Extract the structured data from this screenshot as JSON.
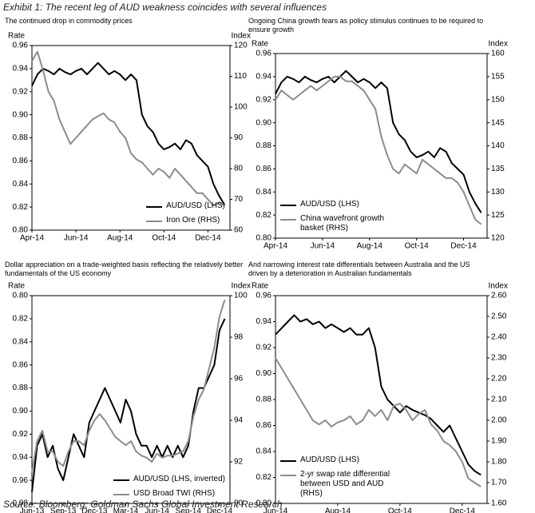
{
  "title": "Exhibit 1: The recent leg of AUD weakness coincides with several influences",
  "source": "Source: Bloomberg; Goldman Sachs Global Investment Research",
  "chart_data": [
    {
      "type": "line",
      "title": "The continued drop in commodity prices",
      "y_label": "Rate",
      "y2_label": "Index",
      "legend": "lower right",
      "x": [
        0,
        0.25,
        0.5,
        0.75,
        1,
        1.25,
        1.5,
        1.75,
        2,
        2.25,
        2.5,
        2.75,
        3,
        3.25,
        3.5,
        3.75,
        4,
        4.25,
        4.5,
        4.75,
        5,
        5.25,
        5.5,
        5.75,
        6,
        6.25,
        6.5,
        6.75,
        7,
        7.25,
        7.5,
        7.75,
        8,
        8.25,
        8.5,
        8.75
      ],
      "xlim": [
        0,
        9
      ],
      "xticks": [
        {
          "value": 0,
          "label": "Apr-14"
        },
        {
          "value": 2,
          "label": "Jun-14"
        },
        {
          "value": 4,
          "label": "Aug-14"
        },
        {
          "value": 6,
          "label": "Oct-14"
        },
        {
          "value": 8,
          "label": "Dec-14"
        }
      ],
      "ylim": [
        0.8,
        0.96
      ],
      "yticks": [
        {
          "value": 0.8,
          "label": "0.80"
        },
        {
          "value": 0.82,
          "label": "0.82"
        },
        {
          "value": 0.84,
          "label": "0.84"
        },
        {
          "value": 0.86,
          "label": "0.86"
        },
        {
          "value": 0.88,
          "label": "0.88"
        },
        {
          "value": 0.9,
          "label": "0.90"
        },
        {
          "value": 0.92,
          "label": "0.92"
        },
        {
          "value": 0.94,
          "label": "0.94"
        },
        {
          "value": 0.96,
          "label": "0.96"
        }
      ],
      "y2lim": [
        60,
        120
      ],
      "y2ticks": [
        60,
        70,
        80,
        90,
        100,
        110,
        120
      ],
      "series": [
        {
          "name": "AUD/USD (LHS)",
          "color": "#000000",
          "values": [
            0.925,
            0.935,
            0.94,
            0.938,
            0.935,
            0.94,
            0.937,
            0.935,
            0.938,
            0.94,
            0.935,
            0.94,
            0.945,
            0.94,
            0.935,
            0.938,
            0.935,
            0.93,
            0.935,
            0.93,
            0.9,
            0.89,
            0.885,
            0.875,
            0.87,
            0.872,
            0.875,
            0.87,
            0.878,
            0.875,
            0.865,
            0.86,
            0.855,
            0.84,
            0.83,
            0.822
          ]
        },
        {
          "name": "Iron Ore (RHS)",
          "color": "#8c8c8c",
          "axis": "y2",
          "values": [
            115,
            118,
            112,
            105,
            102,
            96,
            92,
            88,
            90,
            92,
            94,
            96,
            97,
            98,
            96,
            95,
            92,
            90,
            85,
            83,
            82,
            80,
            78,
            80,
            79,
            77,
            80,
            78,
            76,
            74,
            72,
            72,
            70,
            68,
            69,
            68
          ]
        }
      ]
    },
    {
      "type": "line",
      "title": "Ongoing China growth fears as policy stimulus continues to be required to ensure growth",
      "y_label": "Rate",
      "y2_label": "Index",
      "legend": "lower left",
      "x": [
        0,
        0.25,
        0.5,
        0.75,
        1,
        1.25,
        1.5,
        1.75,
        2,
        2.25,
        2.5,
        2.75,
        3,
        3.25,
        3.5,
        3.75,
        4,
        4.25,
        4.5,
        4.75,
        5,
        5.25,
        5.5,
        5.75,
        6,
        6.25,
        6.5,
        6.75,
        7,
        7.25,
        7.5,
        7.75,
        8,
        8.25,
        8.5,
        8.75
      ],
      "xlim": [
        0,
        9
      ],
      "xticks": [
        {
          "value": 0,
          "label": "Apr-14"
        },
        {
          "value": 2,
          "label": "Jun-14"
        },
        {
          "value": 4,
          "label": "Aug-14"
        },
        {
          "value": 6,
          "label": "Oct-14"
        },
        {
          "value": 8,
          "label": "Dec-14"
        }
      ],
      "ylim": [
        0.8,
        0.96
      ],
      "yticks": [
        {
          "value": 0.8,
          "label": "0.80"
        },
        {
          "value": 0.82,
          "label": "0.82"
        },
        {
          "value": 0.84,
          "label": "0.84"
        },
        {
          "value": 0.86,
          "label": "0.86"
        },
        {
          "value": 0.88,
          "label": "0.88"
        },
        {
          "value": 0.9,
          "label": "0.90"
        },
        {
          "value": 0.92,
          "label": "0.92"
        },
        {
          "value": 0.94,
          "label": "0.94"
        },
        {
          "value": 0.96,
          "label": "0.96"
        }
      ],
      "y2lim": [
        120,
        160
      ],
      "y2ticks": [
        120,
        125,
        130,
        135,
        140,
        145,
        150,
        155,
        160
      ],
      "series": [
        {
          "name": "AUD/USD (LHS)",
          "color": "#000000",
          "values": [
            0.925,
            0.935,
            0.94,
            0.938,
            0.935,
            0.94,
            0.937,
            0.935,
            0.938,
            0.94,
            0.935,
            0.94,
            0.945,
            0.94,
            0.935,
            0.938,
            0.935,
            0.93,
            0.935,
            0.93,
            0.9,
            0.89,
            0.885,
            0.875,
            0.87,
            0.872,
            0.875,
            0.87,
            0.878,
            0.875,
            0.865,
            0.86,
            0.855,
            0.84,
            0.83,
            0.822
          ]
        },
        {
          "name": "China wavefront growth basket (RHS)",
          "color": "#8c8c8c",
          "axis": "y2",
          "values": [
            150,
            152,
            151,
            150,
            151,
            152,
            153,
            152,
            153,
            154,
            155,
            155,
            154,
            154,
            153,
            152,
            150,
            148,
            142,
            138,
            135,
            134,
            136,
            135,
            134,
            137,
            136,
            135,
            134,
            133,
            133,
            132,
            130,
            127,
            124,
            123
          ]
        }
      ]
    },
    {
      "type": "line",
      "title": "Dollar appreciation on a trade-weighted basis reflecting the relatively better fundamentals of the US economy",
      "y_label": "Rate",
      "y2_label": "Index",
      "legend": "lower right",
      "x": [
        0,
        0.5,
        1,
        1.5,
        2,
        2.5,
        3,
        3.5,
        4,
        4.5,
        5,
        5.5,
        6,
        6.5,
        7,
        7.5,
        8,
        8.5,
        9,
        9.5,
        10,
        10.5,
        11,
        11.5,
        12,
        12.5,
        13,
        13.5,
        14,
        14.5,
        15,
        15.5,
        16,
        16.5,
        17,
        17.5,
        18,
        18.5
      ],
      "xlim": [
        0,
        19
      ],
      "xticks": [
        {
          "value": 0,
          "label": "Jun-13"
        },
        {
          "value": 3,
          "label": "Sep-13"
        },
        {
          "value": 6,
          "label": "Dec-13"
        },
        {
          "value": 9,
          "label": "Mar-14"
        },
        {
          "value": 12,
          "label": "Jun-14"
        },
        {
          "value": 15,
          "label": "Sep-14"
        },
        {
          "value": 18,
          "label": "Dec-14"
        }
      ],
      "ylim": [
        0.98,
        0.8
      ],
      "yticks": [
        {
          "value": 0.8,
          "label": "0.80"
        },
        {
          "value": 0.82,
          "label": "0.82"
        },
        {
          "value": 0.84,
          "label": "0.84"
        },
        {
          "value": 0.86,
          "label": "0.86"
        },
        {
          "value": 0.88,
          "label": "0.88"
        },
        {
          "value": 0.9,
          "label": "0.90"
        },
        {
          "value": 0.92,
          "label": "0.92"
        },
        {
          "value": 0.94,
          "label": "0.94"
        },
        {
          "value": 0.96,
          "label": "0.96"
        },
        {
          "value": 0.98,
          "label": "0.98"
        }
      ],
      "y2lim": [
        90,
        100
      ],
      "y2ticks": [
        90,
        92,
        94,
        96,
        98,
        100
      ],
      "series": [
        {
          "name": "AUD/USD (LHS, inverted)",
          "color": "#000000",
          "values": [
            0.97,
            0.93,
            0.92,
            0.94,
            0.93,
            0.95,
            0.96,
            0.94,
            0.92,
            0.93,
            0.94,
            0.91,
            0.9,
            0.89,
            0.88,
            0.89,
            0.9,
            0.91,
            0.89,
            0.9,
            0.92,
            0.93,
            0.93,
            0.94,
            0.93,
            0.94,
            0.93,
            0.94,
            0.93,
            0.94,
            0.93,
            0.9,
            0.88,
            0.88,
            0.87,
            0.86,
            0.83,
            0.82
          ]
        },
        {
          "name": "USD Broad TWI (RHS)",
          "color": "#8c8c8c",
          "axis": "y2",
          "values": [
            91.5,
            93,
            93.5,
            92.5,
            92.5,
            92,
            91.8,
            92.5,
            93,
            93,
            92.8,
            93.5,
            94,
            94.3,
            94,
            93.6,
            93.2,
            93,
            92.8,
            93,
            92.5,
            92.3,
            92.2,
            92,
            92.4,
            92.2,
            92.3,
            92.3,
            92.4,
            92.5,
            93,
            94.2,
            95,
            95.5,
            96.5,
            97.5,
            99,
            99.8
          ]
        }
      ]
    },
    {
      "type": "line",
      "title": "And narrowing interest rate differentials between Australia and the US driven by a deterioration in Australian fundamentals",
      "y_label": "Rate",
      "y2_label": "Index",
      "legend": "lower left",
      "x": [
        0,
        0.2,
        0.4,
        0.6,
        0.8,
        1,
        1.2,
        1.4,
        1.6,
        1.8,
        2,
        2.2,
        2.4,
        2.6,
        2.8,
        3,
        3.2,
        3.4,
        3.6,
        3.8,
        4,
        4.2,
        4.4,
        4.6,
        4.8,
        5,
        5.2,
        5.4,
        5.6,
        5.8,
        6,
        6.2,
        6.4,
        6.6
      ],
      "xlim": [
        0,
        6.8
      ],
      "xticks": [
        {
          "value": 0,
          "label": "Jun-14"
        },
        {
          "value": 2,
          "label": "Aug-14"
        },
        {
          "value": 4,
          "label": "Oct-14"
        },
        {
          "value": 6,
          "label": "Dec-14"
        }
      ],
      "ylim": [
        0.8,
        0.96
      ],
      "yticks": [
        {
          "value": 0.8,
          "label": "0.80"
        },
        {
          "value": 0.82,
          "label": "0.82"
        },
        {
          "value": 0.84,
          "label": "0.84"
        },
        {
          "value": 0.86,
          "label": "0.86"
        },
        {
          "value": 0.88,
          "label": "0.88"
        },
        {
          "value": 0.9,
          "label": "0.90"
        },
        {
          "value": 0.92,
          "label": "0.92"
        },
        {
          "value": 0.94,
          "label": "0.94"
        },
        {
          "value": 0.96,
          "label": "0.96"
        }
      ],
      "y2lim": [
        1.6,
        2.6
      ],
      "y2ticks": [
        {
          "value": 1.6,
          "label": "1.60"
        },
        {
          "value": 1.7,
          "label": "1.70"
        },
        {
          "value": 1.8,
          "label": "1.80"
        },
        {
          "value": 1.9,
          "label": "1.90"
        },
        {
          "value": 2.0,
          "label": "2.00"
        },
        {
          "value": 2.1,
          "label": "2.10"
        },
        {
          "value": 2.2,
          "label": "2.20"
        },
        {
          "value": 2.3,
          "label": "2.30"
        },
        {
          "value": 2.4,
          "label": "2.40"
        },
        {
          "value": 2.5,
          "label": "2.50"
        },
        {
          "value": 2.6,
          "label": "2.60"
        }
      ],
      "series": [
        {
          "name": "AUD/USD (LHS)",
          "color": "#000000",
          "values": [
            0.93,
            0.935,
            0.94,
            0.945,
            0.94,
            0.942,
            0.938,
            0.94,
            0.935,
            0.938,
            0.935,
            0.932,
            0.935,
            0.93,
            0.93,
            0.935,
            0.92,
            0.89,
            0.88,
            0.875,
            0.87,
            0.875,
            0.872,
            0.87,
            0.868,
            0.865,
            0.86,
            0.855,
            0.86,
            0.85,
            0.84,
            0.83,
            0.825,
            0.822
          ]
        },
        {
          "name": "2-yr swap rate differential between USD and AUD (RHS)",
          "color": "#8c8c8c",
          "axis": "y2",
          "values": [
            2.3,
            2.25,
            2.2,
            2.15,
            2.1,
            2.05,
            2.0,
            1.98,
            2.0,
            1.97,
            1.99,
            2.0,
            2.02,
            1.98,
            2.0,
            2.05,
            2.02,
            2.05,
            2.0,
            2.07,
            2.08,
            2.05,
            2.0,
            2.03,
            2.05,
            1.98,
            1.95,
            1.9,
            1.88,
            1.85,
            1.8,
            1.72,
            1.7,
            1.68
          ]
        }
      ]
    }
  ]
}
